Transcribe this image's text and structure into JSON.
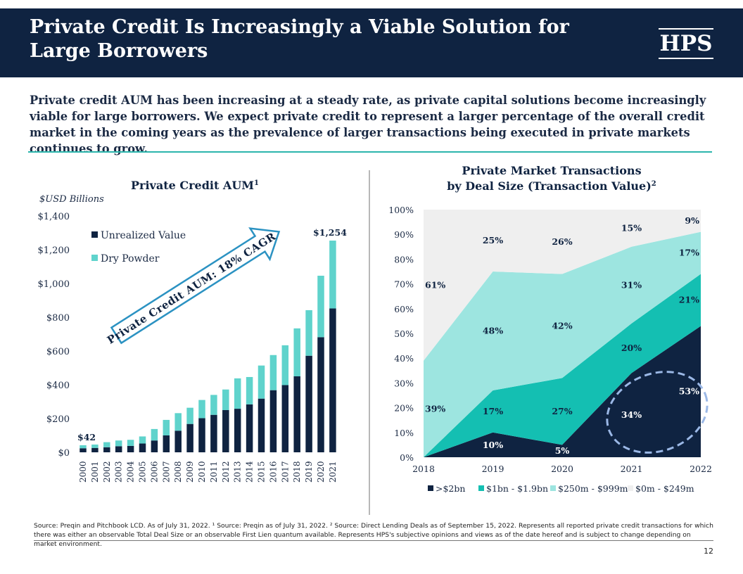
{
  "header": {
    "title": "Private Credit Is Increasingly a Viable Solution for Large Borrowers",
    "logo": "HPS"
  },
  "intro": "Private credit AUM has been increasing at a steady rate, as private capital solutions become increasingly viable for large borrowers. We expect private credit to represent a larger percentage of the overall credit market in the coming years as the prevalence of larger transactions being executed in private markets continues to grow.",
  "footnote": "Source: Preqin and Pitchbook LCD. As of July 31, 2022. ¹ Source: Preqin as of July 31, 2022. ² Source: Direct Lending Deals as of September 15, 2022. Represents all reported private credit transactions for which there was either an observable Total Deal Size or an observable First Lien quantum available. Represents HPS's subjective opinions and views as of the date hereof and is subject to change depending on market environment.",
  "page_number": "12",
  "colors": {
    "navy": "#0f2341",
    "teal": "#14bfb2",
    "light_teal": "#9de5e0",
    "light_gray": "#efefef",
    "teal_rule": "#2cb5ac"
  },
  "chart_data": [
    {
      "type": "bar",
      "stacked": true,
      "title": "Private Credit AUM",
      "title_sup": "1",
      "units_label": "$USD Billions",
      "categories": [
        "2000",
        "2001",
        "2002",
        "2003",
        "2004",
        "2005",
        "2006",
        "2007",
        "2008",
        "2009",
        "2010",
        "2011",
        "2012",
        "2013",
        "2014",
        "2015",
        "2016",
        "2017",
        "2018",
        "2019",
        "2020",
        "2021"
      ],
      "series": [
        {
          "name": "Unrealized Value",
          "color": "#0f2341",
          "values": [
            24,
            26,
            30,
            36,
            38,
            52,
            70,
            100,
            128,
            168,
            202,
            222,
            250,
            258,
            284,
            318,
            368,
            398,
            450,
            572,
            682,
            852
          ]
        },
        {
          "name": "Dry Powder",
          "color": "#5fd3cc",
          "values": [
            18,
            20,
            30,
            34,
            36,
            42,
            68,
            92,
            104,
            96,
            108,
            118,
            122,
            180,
            162,
            196,
            208,
            236,
            284,
            270,
            364,
            402
          ]
        }
      ],
      "ylim": [
        0,
        1400
      ],
      "yticks": [
        "$0",
        "$200",
        "$400",
        "$600",
        "$800",
        "$1,000",
        "$1,200",
        "$1,400"
      ],
      "data_labels": [
        {
          "category": "2000",
          "text": "$42"
        },
        {
          "category": "2021",
          "text": "$1,254"
        }
      ],
      "annotation": "Private Credit AUM: 18% CAGR",
      "legend_position": "top-left"
    },
    {
      "type": "area",
      "stacked": true,
      "percent": true,
      "title_line1": "Private Market Transactions",
      "title_line2": "by Deal Size (Transaction Value)",
      "title_sup": "2",
      "x": [
        "2018",
        "2019",
        "2020",
        "2021",
        "2022"
      ],
      "series": [
        {
          "name": ">$2bn",
          "color": "#0f2341",
          "values": [
            0,
            10,
            5,
            34,
            53
          ],
          "labels": [
            "",
            "10%",
            "5%",
            "34%",
            "53%"
          ]
        },
        {
          "name": "$1bn - $1.9bn",
          "color": "#14bfb2",
          "values": [
            0,
            17,
            27,
            20,
            21
          ],
          "labels": [
            "",
            "17%",
            "27%",
            "20%",
            "21%"
          ]
        },
        {
          "name": "$250m - $999m",
          "color": "#9de5e0",
          "values": [
            39,
            48,
            42,
            31,
            17
          ],
          "labels": [
            "39%",
            "48%",
            "42%",
            "31%",
            "17%"
          ]
        },
        {
          "name": "$0m - $249m",
          "color": "#efefef",
          "values": [
            61,
            25,
            26,
            15,
            9
          ],
          "labels": [
            "61%",
            "25%",
            "26%",
            "15%",
            "9%"
          ]
        }
      ],
      "ylim": [
        0,
        100
      ],
      "yticks": [
        "0%",
        "10%",
        "20%",
        "30%",
        "40%",
        "50%",
        "60%",
        "70%",
        "80%",
        "90%",
        "100%"
      ],
      "legend_position": "bottom",
      "highlight": "dashed circle around 2021-2022 >$2bn"
    }
  ]
}
